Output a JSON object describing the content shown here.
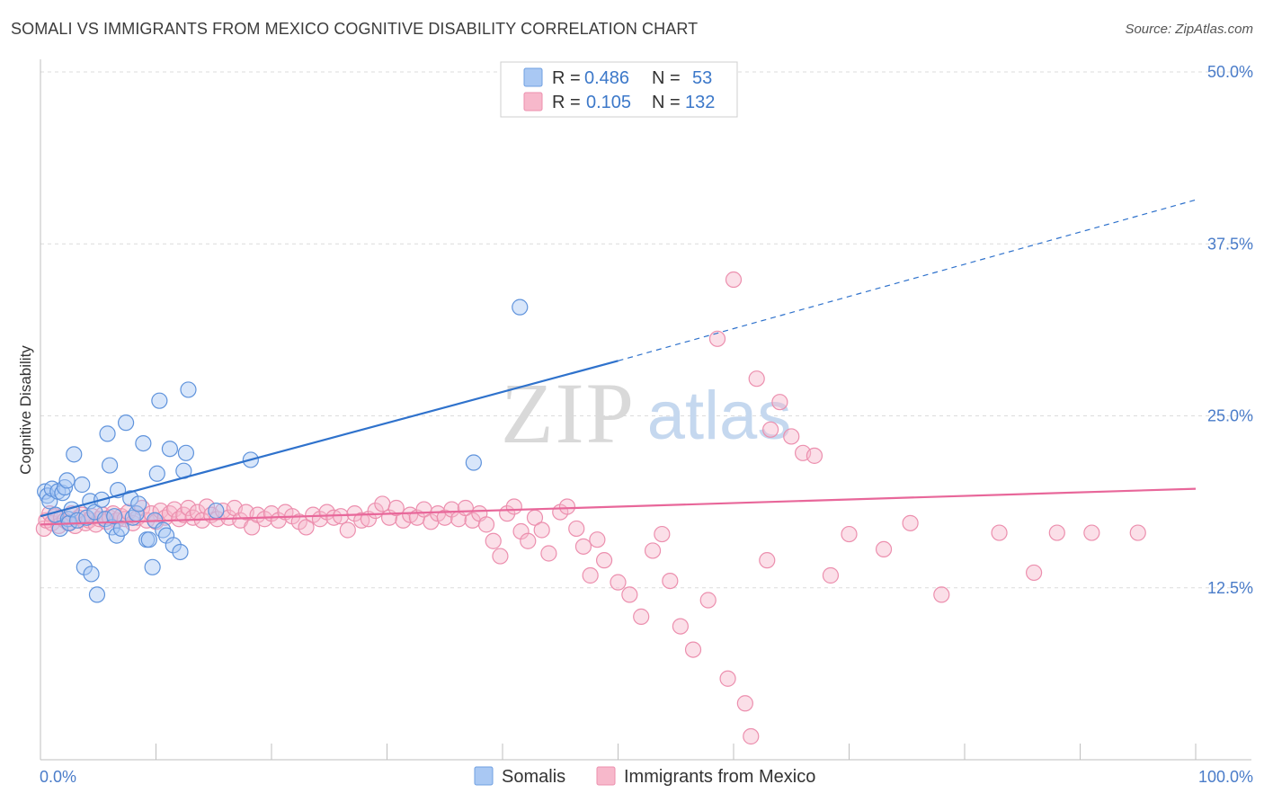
{
  "title": "SOMALI VS IMMIGRANTS FROM MEXICO COGNITIVE DISABILITY CORRELATION CHART",
  "source": "Source: ZipAtlas.com",
  "watermark": {
    "zip": "ZIP",
    "atlas": "atlas"
  },
  "legend": {
    "rows": [
      {
        "r_label": "R =",
        "r_value": "0.486",
        "n_label": "N =",
        "n_value": "53",
        "color": "#a9c8f3"
      },
      {
        "r_label": "R =",
        "r_value": "0.105",
        "n_label": "N =",
        "n_value": "132",
        "color": "#f7b8cb"
      }
    ]
  },
  "bottom_legend": [
    {
      "label": "Somalis",
      "color": "#a9c8f3"
    },
    {
      "label": "Immigrants from Mexico",
      "color": "#f7b8cb"
    }
  ],
  "chart_data": {
    "type": "scatter",
    "title": "SOMALI VS IMMIGRANTS FROM MEXICO COGNITIVE DISABILITY CORRELATION CHART",
    "xlabel": "",
    "ylabel": "Cognitive Disability",
    "xlim": [
      0,
      100
    ],
    "ylim": [
      0,
      50
    ],
    "x_tick_labels": [
      "0.0%",
      "100.0%"
    ],
    "y_ticks": [
      {
        "value": 12.5,
        "label": "12.5%"
      },
      {
        "value": 25,
        "label": "25.0%"
      },
      {
        "value": 37.5,
        "label": "37.5%"
      },
      {
        "value": 50,
        "label": "50.0%"
      }
    ],
    "grid": "horizontal dashed",
    "colors": {
      "somali": "#4a87d8",
      "somali_line": "#2f72cc",
      "mexico": "#ef8fae",
      "mexico_line": "#e8679a"
    },
    "series": [
      {
        "name": "Somalis",
        "trend": {
          "x": [
            0,
            50
          ],
          "y": [
            17.7,
            29.0
          ],
          "dashed_to": [
            100,
            40.7
          ]
        },
        "points": [
          [
            0.4,
            19.5
          ],
          [
            0.6,
            19.2
          ],
          [
            0.8,
            18.8
          ],
          [
            1.0,
            19.7
          ],
          [
            1.3,
            17.8
          ],
          [
            1.5,
            19.5
          ],
          [
            1.7,
            16.8
          ],
          [
            1.9,
            19.4
          ],
          [
            2.1,
            19.8
          ],
          [
            2.3,
            20.3
          ],
          [
            2.4,
            17.5
          ],
          [
            2.5,
            17.2
          ],
          [
            2.7,
            18.2
          ],
          [
            2.9,
            22.2
          ],
          [
            3.2,
            17.4
          ],
          [
            3.6,
            20.0
          ],
          [
            3.8,
            14.0
          ],
          [
            4.0,
            17.6
          ],
          [
            4.3,
            18.8
          ],
          [
            4.4,
            13.5
          ],
          [
            4.7,
            18.0
          ],
          [
            4.9,
            12.0
          ],
          [
            5.3,
            18.9
          ],
          [
            5.6,
            17.5
          ],
          [
            5.8,
            23.7
          ],
          [
            6.0,
            21.4
          ],
          [
            6.2,
            16.9
          ],
          [
            6.4,
            17.7
          ],
          [
            6.6,
            16.3
          ],
          [
            6.7,
            19.6
          ],
          [
            7.0,
            16.8
          ],
          [
            7.4,
            24.5
          ],
          [
            7.8,
            19.0
          ],
          [
            8.0,
            17.6
          ],
          [
            8.3,
            17.9
          ],
          [
            8.5,
            18.6
          ],
          [
            8.9,
            23.0
          ],
          [
            9.2,
            16.0
          ],
          [
            9.4,
            16.0
          ],
          [
            9.7,
            14.0
          ],
          [
            9.9,
            17.4
          ],
          [
            10.1,
            20.8
          ],
          [
            10.3,
            26.1
          ],
          [
            10.6,
            16.7
          ],
          [
            10.9,
            16.3
          ],
          [
            11.2,
            22.6
          ],
          [
            11.5,
            15.6
          ],
          [
            12.1,
            15.1
          ],
          [
            12.4,
            21.0
          ],
          [
            12.6,
            22.3
          ],
          [
            12.8,
            26.9
          ],
          [
            15.2,
            18.1
          ],
          [
            18.2,
            21.8
          ],
          [
            37.5,
            21.6
          ],
          [
            41.5,
            32.9
          ]
        ]
      },
      {
        "name": "Immigrants from Mexico",
        "trend": {
          "x": [
            0,
            100
          ],
          "y": [
            17.1,
            19.7
          ]
        },
        "points": [
          [
            0.3,
            16.8
          ],
          [
            0.5,
            17.4
          ],
          [
            0.8,
            17.9
          ],
          [
            1.0,
            17.2
          ],
          [
            1.3,
            17.7
          ],
          [
            1.6,
            17.0
          ],
          [
            1.8,
            17.6
          ],
          [
            2.1,
            17.4
          ],
          [
            2.4,
            17.2
          ],
          [
            2.7,
            17.9
          ],
          [
            3.0,
            17.0
          ],
          [
            3.3,
            17.6
          ],
          [
            3.6,
            17.8
          ],
          [
            3.9,
            17.2
          ],
          [
            4.2,
            17.4
          ],
          [
            4.5,
            17.7
          ],
          [
            4.8,
            17.1
          ],
          [
            5.1,
            17.5
          ],
          [
            5.4,
            17.8
          ],
          [
            5.7,
            17.3
          ],
          [
            6.0,
            17.6
          ],
          [
            6.3,
            17.9
          ],
          [
            6.6,
            17.4
          ],
          [
            7.0,
            17.7
          ],
          [
            7.3,
            17.5
          ],
          [
            7.6,
            18.0
          ],
          [
            8.0,
            17.2
          ],
          [
            8.4,
            17.6
          ],
          [
            8.8,
            18.3
          ],
          [
            9.2,
            17.4
          ],
          [
            9.6,
            17.9
          ],
          [
            10.0,
            17.3
          ],
          [
            10.4,
            18.1
          ],
          [
            10.8,
            17.6
          ],
          [
            11.2,
            17.9
          ],
          [
            11.6,
            18.2
          ],
          [
            12.0,
            17.5
          ],
          [
            12.4,
            17.8
          ],
          [
            12.8,
            18.3
          ],
          [
            13.2,
            17.6
          ],
          [
            13.6,
            18.0
          ],
          [
            14.0,
            17.4
          ],
          [
            14.4,
            18.4
          ],
          [
            14.8,
            17.8
          ],
          [
            15.3,
            17.5
          ],
          [
            15.8,
            18.1
          ],
          [
            16.3,
            17.6
          ],
          [
            16.8,
            18.3
          ],
          [
            17.3,
            17.4
          ],
          [
            17.8,
            18.0
          ],
          [
            18.3,
            16.9
          ],
          [
            18.8,
            17.8
          ],
          [
            19.4,
            17.5
          ],
          [
            20.0,
            17.9
          ],
          [
            20.6,
            17.4
          ],
          [
            21.2,
            18.0
          ],
          [
            21.8,
            17.7
          ],
          [
            22.4,
            17.3
          ],
          [
            23.0,
            16.9
          ],
          [
            23.6,
            17.8
          ],
          [
            24.2,
            17.5
          ],
          [
            24.8,
            18.0
          ],
          [
            25.4,
            17.6
          ],
          [
            26.0,
            17.7
          ],
          [
            26.6,
            16.7
          ],
          [
            27.2,
            17.9
          ],
          [
            27.8,
            17.4
          ],
          [
            28.4,
            17.5
          ],
          [
            29.0,
            18.1
          ],
          [
            29.6,
            18.6
          ],
          [
            30.2,
            17.6
          ],
          [
            30.8,
            18.3
          ],
          [
            31.4,
            17.4
          ],
          [
            32.0,
            17.8
          ],
          [
            32.6,
            17.6
          ],
          [
            33.2,
            18.2
          ],
          [
            33.8,
            17.3
          ],
          [
            34.4,
            17.9
          ],
          [
            35.0,
            17.6
          ],
          [
            35.6,
            18.2
          ],
          [
            36.2,
            17.5
          ],
          [
            36.8,
            18.3
          ],
          [
            37.4,
            17.4
          ],
          [
            38.0,
            17.9
          ],
          [
            38.6,
            17.1
          ],
          [
            39.2,
            15.9
          ],
          [
            39.8,
            14.8
          ],
          [
            40.4,
            17.9
          ],
          [
            41.0,
            18.4
          ],
          [
            41.6,
            16.6
          ],
          [
            42.2,
            15.9
          ],
          [
            42.8,
            17.6
          ],
          [
            43.4,
            16.7
          ],
          [
            44.0,
            15.0
          ],
          [
            45.0,
            18.0
          ],
          [
            45.6,
            18.4
          ],
          [
            46.4,
            16.8
          ],
          [
            47.0,
            15.5
          ],
          [
            47.6,
            13.4
          ],
          [
            48.2,
            16.0
          ],
          [
            48.8,
            14.5
          ],
          [
            50.0,
            12.9
          ],
          [
            51.0,
            12.0
          ],
          [
            52.0,
            10.4
          ],
          [
            53.0,
            15.2
          ],
          [
            53.8,
            16.4
          ],
          [
            54.5,
            13.0
          ],
          [
            55.4,
            9.7
          ],
          [
            56.5,
            8.0
          ],
          [
            57.8,
            11.6
          ],
          [
            58.6,
            30.6
          ],
          [
            59.5,
            5.9
          ],
          [
            60.0,
            34.9
          ],
          [
            61.0,
            4.1
          ],
          [
            61.5,
            1.7
          ],
          [
            62.0,
            27.7
          ],
          [
            62.9,
            14.5
          ],
          [
            63.2,
            24.0
          ],
          [
            64.0,
            26.0
          ],
          [
            65.0,
            23.5
          ],
          [
            66.0,
            22.3
          ],
          [
            67.0,
            22.1
          ],
          [
            68.4,
            13.4
          ],
          [
            70.0,
            16.4
          ],
          [
            73.0,
            15.3
          ],
          [
            75.3,
            17.2
          ],
          [
            78.0,
            12.0
          ],
          [
            83.0,
            16.5
          ],
          [
            86.0,
            13.6
          ],
          [
            88.0,
            16.5
          ],
          [
            91.0,
            16.5
          ],
          [
            95.0,
            16.5
          ]
        ]
      }
    ]
  }
}
